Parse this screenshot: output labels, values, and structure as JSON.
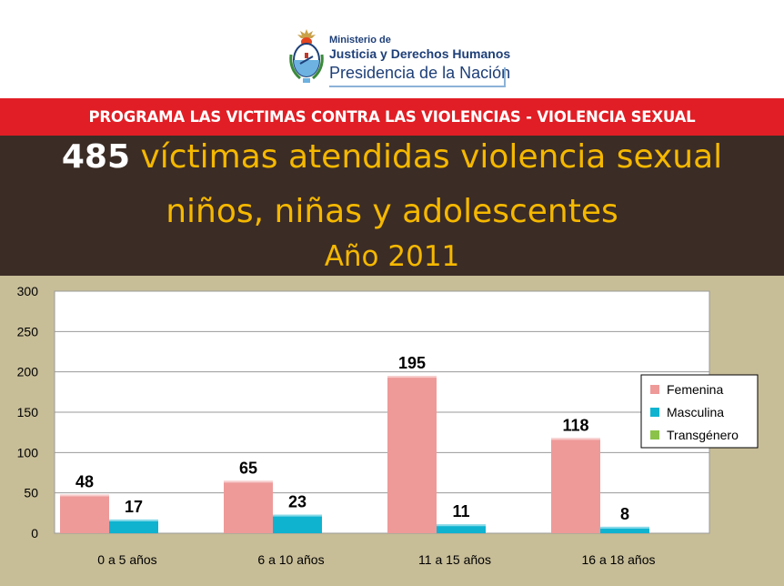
{
  "header": {
    "ministry_line1": "Ministerio de",
    "ministry_line2": "Justicia y Derechos Humanos",
    "ministry_line3": "Presidencia de la Nación"
  },
  "program_banner": "PROGRAMA LAS VICTIMAS CONTRA LAS VIOLENCIAS - VIOLENCIA SEXUAL",
  "title": {
    "count": "485",
    "line1_rest": "víctimas atendidas violencia sexual",
    "line2": "niños, niñas y adolescentes",
    "line3": "Año 2011"
  },
  "colors": {
    "red_band": "#e11e25",
    "dark_band": "#3b2c26",
    "title_yellow": "#f5b800",
    "chart_background": "#c7bd97",
    "femenina": "#ee9a99",
    "masculina": "#0fb3d0",
    "transgenero": "#8bc34a"
  },
  "chart_data": {
    "type": "bar",
    "categories": [
      "0  a  5 años",
      "6 a 10 años",
      "11 a 15 años",
      "16 a 18 años"
    ],
    "series": [
      {
        "name": "Femenina",
        "values": [
          48,
          65,
          195,
          118
        ],
        "color": "#ee9a99"
      },
      {
        "name": "Masculina",
        "values": [
          17,
          23,
          11,
          8
        ],
        "color": "#0fb3d0"
      },
      {
        "name": "Transgénero",
        "values": [
          0,
          0,
          0,
          0
        ],
        "color": "#8bc34a"
      }
    ],
    "data_labels": {
      "Femenina": [
        "48",
        "65",
        "195",
        "118"
      ],
      "Masculina": [
        "17",
        "23",
        "11",
        "8"
      ]
    },
    "y_ticks": [
      0,
      50,
      100,
      150,
      200,
      250,
      300
    ],
    "ylim": [
      0,
      300
    ],
    "grid": true,
    "legend_position": "right"
  }
}
